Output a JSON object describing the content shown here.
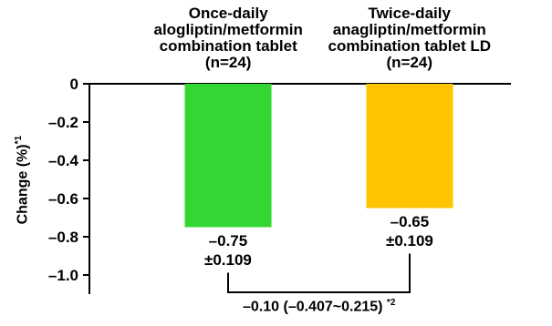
{
  "chart_data": {
    "type": "bar",
    "categories": [
      [
        "Once-daily",
        "alogliptin/metformin",
        "combination tablet",
        "(n=24)"
      ],
      [
        "Twice-daily",
        "anagliptin/metformin",
        "combination tablet LD",
        "(n=24)"
      ]
    ],
    "values": [
      -0.75,
      -0.65
    ],
    "value_labels": [
      [
        "–0.75",
        "±0.109"
      ],
      [
        "–0.65",
        "±0.109"
      ]
    ],
    "colors": [
      "#33d633",
      "#ffc400"
    ],
    "ylabel": "Change (%)",
    "ylabel_note": "*1",
    "ylim": [
      -1.1,
      0
    ],
    "yticks": [
      0,
      -0.2,
      -0.4,
      -0.6,
      -0.8,
      -1.0
    ],
    "ytick_labels": [
      "0",
      "–0.2",
      "–0.4",
      "–0.6",
      "–0.8",
      "–1.0"
    ],
    "difference": {
      "text": "–0.10 (–0.407~0.215)",
      "note": "*2"
    }
  }
}
